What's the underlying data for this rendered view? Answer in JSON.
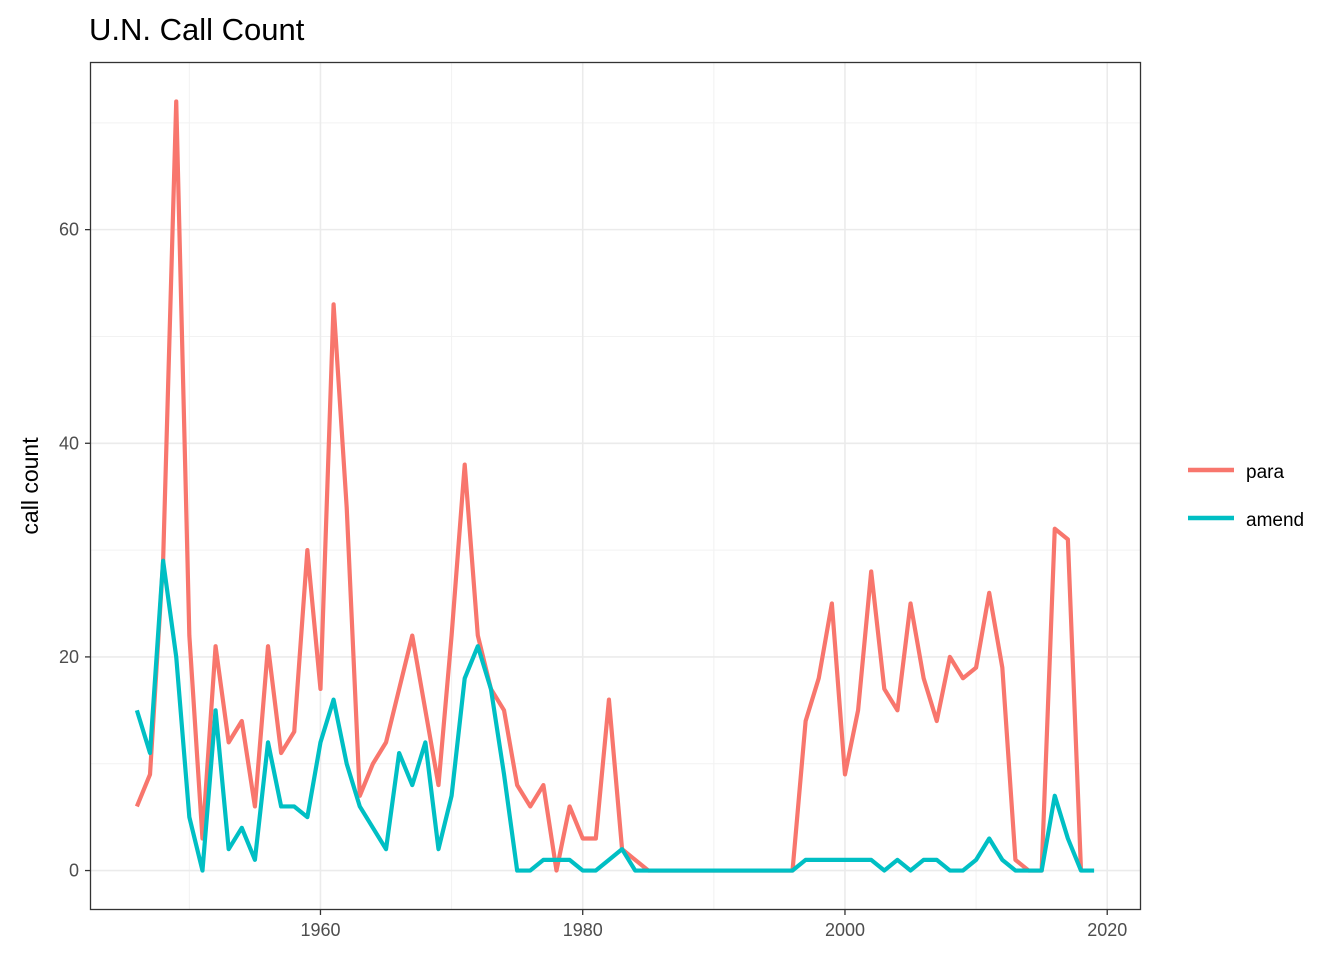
{
  "chart_data": {
    "type": "line",
    "title": "U.N. Call Count",
    "xlabel": "",
    "ylabel": "call count",
    "xlim": [
      1942.5,
      2022.5
    ],
    "ylim": [
      -3.6,
      75.6
    ],
    "x_ticks": [
      1960,
      1980,
      2000,
      2020
    ],
    "y_ticks": [
      0,
      20,
      40,
      60
    ],
    "x_minor_ticks": [
      1950,
      1970,
      1990,
      2010
    ],
    "y_minor_ticks": [
      10,
      30,
      50,
      70
    ],
    "grid": true,
    "legend": "right",
    "x": [
      1946,
      1947,
      1948,
      1949,
      1950,
      1951,
      1952,
      1953,
      1954,
      1955,
      1956,
      1957,
      1958,
      1959,
      1960,
      1961,
      1962,
      1963,
      1964,
      1965,
      1966,
      1967,
      1968,
      1969,
      1970,
      1971,
      1972,
      1973,
      1974,
      1975,
      1976,
      1977,
      1978,
      1979,
      1980,
      1981,
      1982,
      1983,
      1984,
      1985,
      1986,
      1987,
      1988,
      1989,
      1990,
      1991,
      1992,
      1993,
      1994,
      1995,
      1996,
      1997,
      1998,
      1999,
      2000,
      2001,
      2002,
      2003,
      2004,
      2005,
      2006,
      2007,
      2008,
      2009,
      2010,
      2011,
      2012,
      2013,
      2014,
      2015,
      2016,
      2017,
      2018,
      2019
    ],
    "series": [
      {
        "name": "para",
        "color": "#F8766D",
        "values": [
          6,
          9,
          29,
          72,
          22,
          3,
          21,
          12,
          14,
          6,
          21,
          11,
          13,
          30,
          17,
          53,
          34,
          7,
          10,
          12,
          17,
          22,
          15,
          8,
          22,
          38,
          22,
          17,
          15,
          8,
          6,
          8,
          0,
          6,
          3,
          3,
          16,
          2,
          1,
          0,
          0,
          0,
          0,
          0,
          0,
          0,
          0,
          0,
          0,
          0,
          0,
          14,
          18,
          25,
          9,
          15,
          28,
          17,
          15,
          25,
          18,
          14,
          20,
          18,
          19,
          26,
          19,
          1,
          0,
          0,
          32,
          31,
          0,
          null
        ]
      },
      {
        "name": "amend",
        "color": "#00BFC4",
        "values": [
          15,
          11,
          29,
          20,
          5,
          0,
          15,
          2,
          4,
          1,
          12,
          6,
          6,
          5,
          12,
          16,
          10,
          6,
          4,
          2,
          11,
          8,
          12,
          2,
          7,
          18,
          21,
          17,
          9,
          0,
          0,
          1,
          1,
          1,
          0,
          0,
          1,
          2,
          0,
          0,
          0,
          0,
          0,
          0,
          0,
          0,
          0,
          0,
          0,
          0,
          0,
          1,
          1,
          1,
          1,
          1,
          1,
          0,
          1,
          0,
          1,
          1,
          0,
          0,
          1,
          3,
          1,
          0,
          0,
          0,
          7,
          3,
          0,
          0
        ]
      }
    ]
  }
}
